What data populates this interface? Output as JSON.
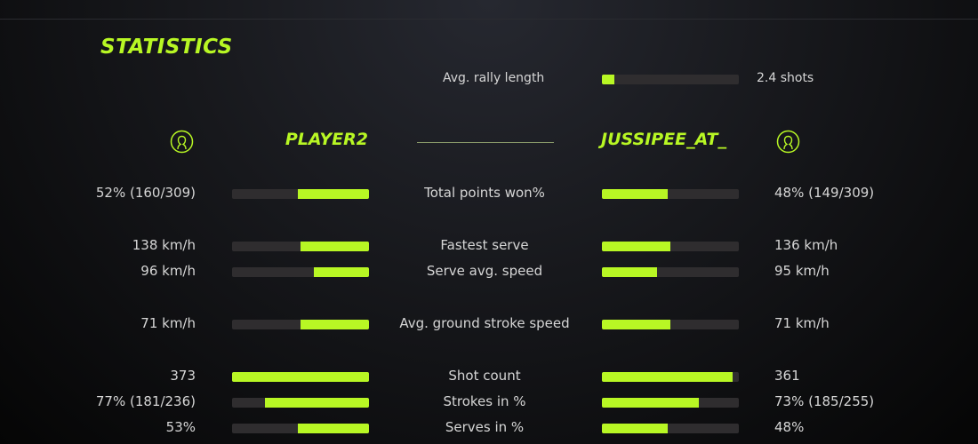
{
  "title": "STATISTICS",
  "accent": "#b8f724",
  "rally": {
    "label": "Avg. rally length",
    "value": "2.4 shots",
    "fraction": 0.09
  },
  "players": {
    "left": {
      "name": "PLAYER2",
      "icon": "user-circle-icon"
    },
    "right": {
      "name": "JUSSIPEE_AT_",
      "icon": "user-circle-icon"
    }
  },
  "stats": [
    {
      "label": "Total points won%",
      "left": "52% (160/309)",
      "right": "48% (149/309)",
      "left_fraction": 0.52,
      "right_fraction": 0.48
    },
    {
      "label": "Fastest serve",
      "left": "138 km/h",
      "right": "136 km/h",
      "left_fraction": 0.5,
      "right_fraction": 0.5
    },
    {
      "label": "Serve avg. speed",
      "left": "96 km/h",
      "right": "95 km/h",
      "left_fraction": 0.4,
      "right_fraction": 0.4
    },
    {
      "label": "Avg. ground stroke speed",
      "left": "71 km/h",
      "right": "71 km/h",
      "left_fraction": 0.5,
      "right_fraction": 0.5
    },
    {
      "label": "Shot count",
      "left": "373",
      "right": "361",
      "left_fraction": 1.0,
      "right_fraction": 0.955
    },
    {
      "label": "Strokes in %",
      "left": "77% (181/236)",
      "right": "73% (185/255)",
      "left_fraction": 0.76,
      "right_fraction": 0.71
    },
    {
      "label": "Serves in %",
      "left": "53%",
      "right": "48%",
      "left_fraction": 0.52,
      "right_fraction": 0.48
    }
  ]
}
